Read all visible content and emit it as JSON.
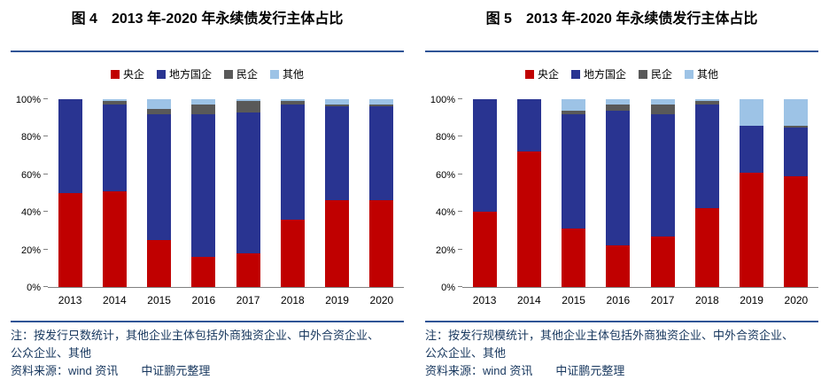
{
  "colors": {
    "divider": "#2F5496",
    "note_text": "#17375E",
    "axis": "#808080",
    "text": "#000000",
    "background": "#FFFFFF"
  },
  "charts": [
    {
      "title": "图 4　2013 年-2020 年永续债发行主体占比",
      "note_lines": [
        "注：按发行只数统计，其他企业主体包括外商独资企业、中外合资企业、",
        "公众企业、其他"
      ],
      "source": "资料来源：wind 资讯　　中证鹏元整理",
      "chart_data": {
        "type": "bar",
        "stacked": true,
        "title": "图 4 2013 年-2020 年永续债发行主体占比",
        "categories": [
          "2013",
          "2014",
          "2015",
          "2016",
          "2017",
          "2018",
          "2019",
          "2020"
        ],
        "series": [
          {
            "name": "央企",
            "color": "#C00000",
            "values": [
              50,
              51,
              25,
              16,
              18,
              36,
              46,
              46
            ]
          },
          {
            "name": "地方国企",
            "color": "#293491",
            "values": [
              50,
              46,
              67,
              76,
              75,
              61,
              50,
              50
            ]
          },
          {
            "name": "民企",
            "color": "#595959",
            "values": [
              0,
              2,
              3,
              5,
              6,
              2,
              1,
              1
            ]
          },
          {
            "name": "其他",
            "color": "#9DC3E6",
            "values": [
              0,
              1,
              5,
              3,
              1,
              1,
              3,
              3
            ]
          }
        ],
        "unit": "%",
        "ylim": [
          0,
          100
        ],
        "yticks": [
          "0%",
          "20%",
          "40%",
          "60%",
          "80%",
          "100%"
        ],
        "legend_position": "top",
        "grid": false
      }
    },
    {
      "title": "图 5　2013 年-2020 年永续债发行主体占比",
      "note_lines": [
        "注：按发行规模统计，其他企业主体包括外商独资企业、中外合资企业、",
        "公众企业、其他"
      ],
      "source": "资料来源：wind 资讯　　中证鹏元整理",
      "chart_data": {
        "type": "bar",
        "stacked": true,
        "title": "图 5 2013 年-2020 年永续债发行主体占比",
        "categories": [
          "2013",
          "2014",
          "2015",
          "2016",
          "2017",
          "2018",
          "2019",
          "2020"
        ],
        "series": [
          {
            "name": "央企",
            "color": "#C00000",
            "values": [
              40,
              72,
              31,
              22,
              27,
              42,
              61,
              59
            ]
          },
          {
            "name": "地方国企",
            "color": "#293491",
            "values": [
              60,
              28,
              61,
              72,
              65,
              55,
              25,
              26
            ]
          },
          {
            "name": "民企",
            "color": "#595959",
            "values": [
              0,
              0,
              2,
              3,
              5,
              2,
              0,
              1
            ]
          },
          {
            "name": "其他",
            "color": "#9DC3E6",
            "values": [
              0,
              0,
              6,
              3,
              3,
              1,
              14,
              14
            ]
          }
        ],
        "unit": "%",
        "ylim": [
          0,
          100
        ],
        "yticks": [
          "0%",
          "20%",
          "40%",
          "60%",
          "80%",
          "100%"
        ],
        "legend_position": "top",
        "grid": false
      }
    }
  ]
}
